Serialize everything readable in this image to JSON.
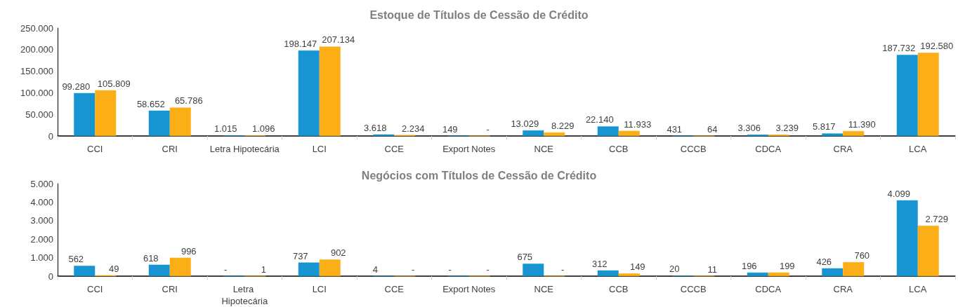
{
  "chart_data": [
    {
      "type": "bar",
      "title": "Estoque de Títulos de Cessão de Crédito",
      "categories": [
        "CCI",
        "CRI",
        "Letra Hipotecária",
        "LCI",
        "CCE",
        "Export Notes",
        "NCE",
        "CCB",
        "CCCB",
        "CDCA",
        "CRA",
        "LCA"
      ],
      "series": [
        {
          "color": "#1795d3",
          "values": [
            99280,
            58652,
            1015,
            198147,
            3618,
            149,
            13029,
            22140,
            431,
            3306,
            5817,
            187732
          ],
          "value_labels": [
            "99.280",
            "58.652",
            "1.015",
            "198.147",
            "3.618",
            "149",
            "13.029",
            "22.140",
            "431",
            "3.306",
            "5.817",
            "187.732"
          ]
        },
        {
          "color": "#fcae17",
          "values": [
            105809,
            65786,
            1096,
            207134,
            2234,
            0,
            8229,
            11933,
            64,
            3239,
            11390,
            192580
          ],
          "value_labels": [
            "105.809",
            "65.786",
            "1.096",
            "207.134",
            "2.234",
            "-",
            "8.229",
            "11.933",
            "64",
            "3.239",
            "11.390",
            "192.580"
          ]
        }
      ],
      "ylim": [
        0,
        250000
      ],
      "yticks": [
        0,
        {
          "value": 50000,
          "label": "50.000"
        },
        {
          "value": 100000,
          "label": "100.000"
        },
        {
          "value": 150000,
          "label": "150.000"
        },
        {
          "value": 200000,
          "label": "200.000"
        },
        {
          "value": 250000,
          "label": "250.000"
        }
      ]
    },
    {
      "type": "bar",
      "title": "Negócios com Títulos de Cessão de Crédito",
      "categories": [
        "CCI",
        "CRI",
        "Letra Hipotecária",
        "LCI",
        "CCE",
        "Export Notes",
        "NCE",
        "CCB",
        "CCCB",
        "CDCA",
        "CRA",
        "LCA"
      ],
      "series": [
        {
          "color": "#1795d3",
          "values": [
            562,
            618,
            0,
            737,
            4,
            0,
            675,
            312,
            20,
            196,
            426,
            4099
          ],
          "value_labels": [
            "562",
            "618",
            "-",
            "737",
            "4",
            "-",
            "675",
            "312",
            "20",
            "196",
            "426",
            "4.099"
          ]
        },
        {
          "color": "#fcae17",
          "values": [
            49,
            996,
            1,
            902,
            0,
            0,
            0,
            149,
            11,
            199,
            760,
            2729
          ],
          "value_labels": [
            "49",
            "996",
            "1",
            "902",
            "-",
            "-",
            "-",
            "149",
            "11",
            "199",
            "760",
            "2.729"
          ]
        }
      ],
      "ylim": [
        0,
        5000
      ],
      "yticks": [
        0,
        {
          "value": 1000,
          "label": "1.000"
        },
        {
          "value": 2000,
          "label": "2.000"
        },
        {
          "value": 3000,
          "label": "3.000"
        },
        {
          "value": 4000,
          "label": "4.000"
        },
        {
          "value": 5000,
          "label": "5.000"
        }
      ]
    }
  ]
}
